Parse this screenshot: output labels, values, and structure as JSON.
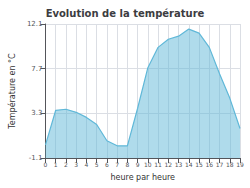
{
  "chart_data": {
    "type": "area",
    "title": "Evolution de la température",
    "xlabel": "heure par heure",
    "ylabel": "Température en °C",
    "x": [
      0,
      1,
      2,
      3,
      4,
      5,
      6,
      7,
      8,
      9,
      10,
      11,
      12,
      13,
      14,
      15,
      16,
      17,
      18,
      19
    ],
    "values": [
      0.2,
      3.6,
      3.7,
      3.4,
      2.9,
      2.2,
      0.6,
      0.1,
      0.1,
      3.8,
      7.8,
      9.8,
      10.6,
      10.9,
      11.6,
      11.2,
      9.8,
      7.2,
      4.8,
      1.8
    ],
    "color": "#60b8d8",
    "xlim": [
      0,
      19
    ],
    "xticks": [
      0,
      1,
      2,
      3,
      4,
      5,
      6,
      7,
      8,
      9,
      10,
      11,
      12,
      13,
      14,
      15,
      16,
      17,
      18,
      19
    ],
    "ylim": [
      -1.1,
      12.1
    ],
    "yticks": [
      -1.1,
      3.3,
      7.7,
      12.1
    ],
    "grid": true
  }
}
